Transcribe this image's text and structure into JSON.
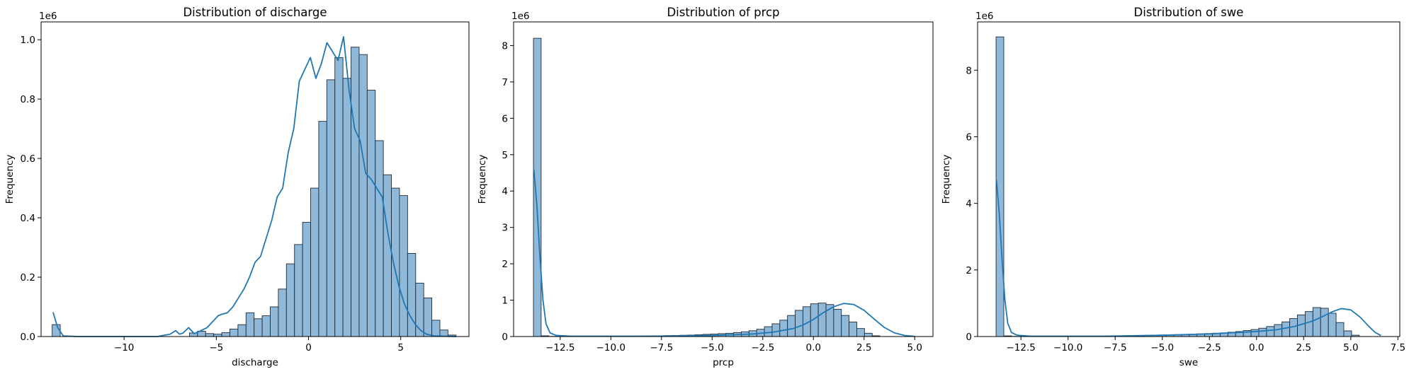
{
  "chart_data": [
    {
      "type": "bar",
      "title": "Distribution of discharge",
      "xlabel": "discharge",
      "ylabel": "Frequency",
      "offset_text": "1e6",
      "xlim": [
        -14.5,
        8.7
      ],
      "ylim": [
        0,
        1.06
      ],
      "xticks": [
        -10,
        -5,
        0,
        5
      ],
      "xtick_labels": [
        "−10",
        "−5",
        "0",
        "5"
      ],
      "yticks": [
        0,
        0.2,
        0.4,
        0.6,
        0.8,
        1.0
      ],
      "ytick_labels": [
        "0.0",
        "0.2",
        "0.4",
        "0.6",
        "0.8",
        "1.0"
      ],
      "bin_start": -13.9,
      "bin_width": 0.438,
      "values": [
        0.04,
        0,
        0,
        0,
        0,
        0,
        0,
        0,
        0,
        0,
        0,
        0,
        0,
        0,
        0,
        0,
        0,
        0.012,
        0.018,
        0.01,
        0.008,
        0.013,
        0.025,
        0.04,
        0.08,
        0.06,
        0.07,
        0.1,
        0.16,
        0.245,
        0.31,
        0.385,
        0.5,
        0.725,
        0.865,
        0.94,
        0.87,
        0.975,
        0.95,
        0.83,
        0.66,
        0.545,
        0.5,
        0.475,
        0.28,
        0.18,
        0.13,
        0.055,
        0.022,
        0.005
      ],
      "kde": [
        [
          -13.85,
          0.082
        ],
        [
          -13.6,
          0.03
        ],
        [
          -13.3,
          0.002
        ],
        [
          -12.5,
          0
        ],
        [
          -8.2,
          0
        ],
        [
          -7.5,
          0.008
        ],
        [
          -7.2,
          0.02
        ],
        [
          -7.0,
          0.008
        ],
        [
          -6.8,
          0.012
        ],
        [
          -6.5,
          0.03
        ],
        [
          -6.2,
          0.01
        ],
        [
          -5.9,
          0.018
        ],
        [
          -5.5,
          0.03
        ],
        [
          -5.2,
          0.05
        ],
        [
          -4.9,
          0.07
        ],
        [
          -4.7,
          0.075
        ],
        [
          -4.4,
          0.08
        ],
        [
          -4.1,
          0.1
        ],
        [
          -3.8,
          0.13
        ],
        [
          -3.5,
          0.16
        ],
        [
          -3.2,
          0.2
        ],
        [
          -2.9,
          0.25
        ],
        [
          -2.6,
          0.27
        ],
        [
          -2.3,
          0.33
        ],
        [
          -2.0,
          0.39
        ],
        [
          -1.7,
          0.47
        ],
        [
          -1.4,
          0.5
        ],
        [
          -1.1,
          0.62
        ],
        [
          -0.8,
          0.7
        ],
        [
          -0.5,
          0.86
        ],
        [
          -0.2,
          0.9
        ],
        [
          0.1,
          0.94
        ],
        [
          0.4,
          0.87
        ],
        [
          0.7,
          0.92
        ],
        [
          1.0,
          0.99
        ],
        [
          1.3,
          0.96
        ],
        [
          1.6,
          0.93
        ],
        [
          1.9,
          1.01
        ],
        [
          2.2,
          0.83
        ],
        [
          2.5,
          0.7
        ],
        [
          2.8,
          0.66
        ],
        [
          3.1,
          0.55
        ],
        [
          3.4,
          0.53
        ],
        [
          3.7,
          0.5
        ],
        [
          4.0,
          0.47
        ],
        [
          4.3,
          0.35
        ],
        [
          4.6,
          0.25
        ],
        [
          4.9,
          0.17
        ],
        [
          5.2,
          0.11
        ],
        [
          5.5,
          0.07
        ],
        [
          5.8,
          0.04
        ],
        [
          6.1,
          0.02
        ],
        [
          6.4,
          0.008
        ],
        [
          6.8,
          0.002
        ],
        [
          8.0,
          0
        ]
      ]
    },
    {
      "type": "bar",
      "title": "Distribution of prcp",
      "xlabel": "prcp",
      "ylabel": "Frequency",
      "offset_text": "1e6",
      "xlim": [
        -14.8,
        5.9
      ],
      "ylim": [
        0,
        8.65
      ],
      "xticks": [
        -12.5,
        -10.0,
        -7.5,
        -5.0,
        -2.5,
        0.0,
        2.5,
        5.0
      ],
      "xtick_labels": [
        "−12.5",
        "−10.0",
        "−7.5",
        "−5.0",
        "−2.5",
        "0.0",
        "2.5",
        "5.0"
      ],
      "yticks": [
        0,
        1,
        2,
        3,
        4,
        5,
        6,
        7,
        8
      ],
      "ytick_labels": [
        "0",
        "1",
        "2",
        "3",
        "4",
        "5",
        "6",
        "7",
        "8"
      ],
      "bin_start": -13.82,
      "bin_width": 0.38,
      "values": [
        8.2,
        0.02,
        0.005,
        0.005,
        0.005,
        0.005,
        0.005,
        0.005,
        0.005,
        0.005,
        0.006,
        0.008,
        0.01,
        0.012,
        0.015,
        0.018,
        0.02,
        0.025,
        0.03,
        0.035,
        0.04,
        0.05,
        0.06,
        0.07,
        0.08,
        0.09,
        0.11,
        0.13,
        0.16,
        0.2,
        0.27,
        0.35,
        0.45,
        0.58,
        0.72,
        0.82,
        0.9,
        0.92,
        0.88,
        0.75,
        0.58,
        0.4,
        0.22,
        0.09,
        0.02
      ],
      "kde": [
        [
          -13.8,
          4.6
        ],
        [
          -13.65,
          3.6
        ],
        [
          -13.5,
          2.2
        ],
        [
          -13.35,
          1.0
        ],
        [
          -13.2,
          0.35
        ],
        [
          -13.0,
          0.1
        ],
        [
          -12.7,
          0.03
        ],
        [
          -12.0,
          0.01
        ],
        [
          -8.0,
          0.01
        ],
        [
          -5.0,
          0.03
        ],
        [
          -3.0,
          0.07
        ],
        [
          -2.0,
          0.12
        ],
        [
          -1.0,
          0.22
        ],
        [
          -0.5,
          0.32
        ],
        [
          0.0,
          0.47
        ],
        [
          0.5,
          0.66
        ],
        [
          1.0,
          0.82
        ],
        [
          1.5,
          0.91
        ],
        [
          2.0,
          0.88
        ],
        [
          2.5,
          0.72
        ],
        [
          3.0,
          0.48
        ],
        [
          3.5,
          0.25
        ],
        [
          4.0,
          0.1
        ],
        [
          4.5,
          0.03
        ],
        [
          5.0,
          0.005
        ]
      ]
    },
    {
      "type": "bar",
      "title": "Distribution of swe",
      "xlabel": "swe",
      "ylabel": "Frequency",
      "offset_text": "1e6",
      "xlim": [
        -14.8,
        7.6
      ],
      "ylim": [
        0,
        9.45
      ],
      "xticks": [
        -12.5,
        -10.0,
        -7.5,
        -5.0,
        -2.5,
        0.0,
        2.5,
        5.0,
        7.5
      ],
      "xtick_labels": [
        "−12.5",
        "−10.0",
        "−7.5",
        "−5.0",
        "−2.5",
        "0.0",
        "2.5",
        "5.0",
        "7.5"
      ],
      "yticks": [
        0,
        2,
        4,
        6,
        8
      ],
      "ytick_labels": [
        "0",
        "2",
        "4",
        "6",
        "8"
      ],
      "bin_start": -13.82,
      "bin_width": 0.41,
      "values": [
        9.0,
        0.02,
        0.005,
        0.005,
        0.005,
        0.005,
        0.005,
        0.005,
        0.005,
        0.006,
        0.007,
        0.008,
        0.01,
        0.012,
        0.015,
        0.018,
        0.02,
        0.025,
        0.03,
        0.035,
        0.04,
        0.045,
        0.05,
        0.055,
        0.06,
        0.07,
        0.08,
        0.09,
        0.1,
        0.11,
        0.13,
        0.15,
        0.18,
        0.21,
        0.25,
        0.3,
        0.36,
        0.44,
        0.54,
        0.65,
        0.75,
        0.87,
        0.85,
        0.7,
        0.42,
        0.17,
        0.04
      ],
      "kde": [
        [
          -13.8,
          4.7
        ],
        [
          -13.65,
          3.7
        ],
        [
          -13.5,
          2.3
        ],
        [
          -13.35,
          1.1
        ],
        [
          -13.2,
          0.4
        ],
        [
          -13.0,
          0.12
        ],
        [
          -12.7,
          0.04
        ],
        [
          -12.0,
          0.01
        ],
        [
          -8.0,
          0.01
        ],
        [
          -5.0,
          0.04
        ],
        [
          -2.5,
          0.08
        ],
        [
          0.0,
          0.15
        ],
        [
          1.0,
          0.2
        ],
        [
          2.0,
          0.3
        ],
        [
          3.0,
          0.47
        ],
        [
          3.5,
          0.6
        ],
        [
          4.0,
          0.74
        ],
        [
          4.5,
          0.84
        ],
        [
          5.0,
          0.8
        ],
        [
          5.5,
          0.58
        ],
        [
          6.0,
          0.28
        ],
        [
          6.3,
          0.12
        ],
        [
          6.6,
          0.03
        ]
      ]
    }
  ]
}
